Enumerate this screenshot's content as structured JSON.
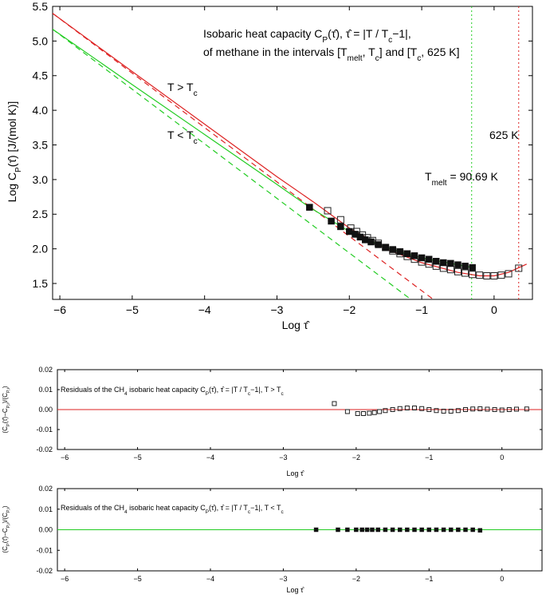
{
  "chart_data": [
    {
      "type": "scatter",
      "xlim": [
        -6.1,
        0.53
      ],
      "ylim": [
        1.27,
        5.5
      ],
      "xticks": [
        {
          "value": -6,
          "label": "−6"
        },
        {
          "value": -5,
          "label": "−5"
        },
        {
          "value": -4,
          "label": "−4"
        },
        {
          "value": -3,
          "label": "−3"
        },
        {
          "value": -2,
          "label": "−2"
        },
        {
          "value": -1,
          "label": "−1"
        },
        0
      ],
      "yticks": [
        1.5,
        {
          "value": 2,
          "label": "2.0"
        },
        2.5,
        {
          "value": 3,
          "label": "3.0"
        },
        3.5,
        {
          "value": 4,
          "label": "4.0"
        },
        4.5,
        {
          "value": 5,
          "label": "5.0"
        },
        5.5
      ],
      "x_label": [
        {
          "t": "Log τ̂"
        }
      ],
      "y_label": [
        {
          "t": "Log C"
        },
        {
          "t": "P",
          "sub": true
        },
        {
          "t": "(τ̂) [J/(mol K)]"
        }
      ],
      "annotations": [
        [
          {
            "t": "Isobaric heat capacity C"
          },
          {
            "t": "P",
            "sub": true
          },
          {
            "t": "(τ̂), τ̂ = |T / T"
          },
          {
            "t": "c",
            "sub": true
          },
          {
            "t": "−1|,"
          }
        ],
        [
          {
            "t": "of methane in the intervals [T"
          },
          {
            "t": "melt",
            "sub": true
          },
          {
            "t": ", T"
          },
          {
            "t": "c",
            "sub": true
          },
          {
            "t": "] and [T"
          },
          {
            "t": "c",
            "sub": true
          },
          {
            "t": ", 625 K]"
          }
        ],
        [
          {
            "t": "T > T"
          },
          {
            "t": "c",
            "sub": true
          }
        ],
        [
          {
            "t": "T < T"
          },
          {
            "t": "c",
            "sub": true
          }
        ],
        [
          {
            "t": "625 K"
          }
        ],
        [
          {
            "t": "T"
          },
          {
            "t": "melt",
            "sub": true
          },
          {
            "t": " = 90.69 K"
          }
        ]
      ],
      "vlines": [
        {
          "x": -0.31,
          "color": "#22cc22",
          "style": "dotted"
        },
        {
          "x": 0.34,
          "color": "#dd2222",
          "style": "dotted"
        }
      ],
      "series": [
        {
          "kind": "line",
          "color": "#dd2222",
          "style": "solid",
          "x": [
            -6.1,
            -5,
            -4,
            -3,
            -2.5,
            -2,
            -1.5,
            -1,
            -0.5,
            -0.2,
            0,
            0.2,
            0.45
          ],
          "y": [
            5.4,
            4.56,
            3.8,
            3.04,
            2.68,
            2.3,
            2.0,
            1.8,
            1.66,
            1.61,
            1.61,
            1.66,
            1.78
          ]
        },
        {
          "kind": "line",
          "color": "#dd2222",
          "style": "dashed",
          "x": [
            -6.1,
            -0.84
          ],
          "y": [
            5.4,
            1.27
          ]
        },
        {
          "kind": "line",
          "color": "#22cc22",
          "style": "solid",
          "x": [
            -6.1,
            -5,
            -4,
            -3,
            -2.55,
            -2,
            -1.5,
            -1,
            -0.5,
            -0.3
          ],
          "y": [
            5.17,
            4.37,
            3.65,
            2.93,
            2.6,
            2.25,
            2.02,
            1.87,
            1.77,
            1.73
          ]
        },
        {
          "kind": "line",
          "color": "#22cc22",
          "style": "dashed",
          "x": [
            -6.1,
            -1.15
          ],
          "y": [
            5.17,
            1.27
          ]
        },
        {
          "kind": "points",
          "color": "#222222",
          "marker": "open-square",
          "x": [
            -2.3,
            -2.12,
            -1.98,
            -1.9,
            -1.82,
            -1.75,
            -1.68,
            -1.6,
            -1.5,
            -1.4,
            -1.3,
            -1.2,
            -1.1,
            -1,
            -0.9,
            -0.8,
            -0.7,
            -0.6,
            -0.5,
            -0.4,
            -0.3,
            -0.2,
            -0.1,
            0,
            0.1,
            0.2,
            0.34
          ],
          "y": [
            2.55,
            2.42,
            2.3,
            2.25,
            2.2,
            2.16,
            2.12,
            2.08,
            2.02,
            1.97,
            1.93,
            1.89,
            1.85,
            1.81,
            1.78,
            1.75,
            1.72,
            1.7,
            1.67,
            1.65,
            1.63,
            1.62,
            1.61,
            1.61,
            1.62,
            1.64,
            1.72
          ]
        },
        {
          "kind": "points",
          "color": "#111111",
          "marker": "filled-square",
          "x": [
            -2.55,
            -2.25,
            -2.12,
            -2,
            -1.92,
            -1.85,
            -1.78,
            -1.7,
            -1.6,
            -1.5,
            -1.4,
            -1.3,
            -1.2,
            -1.1,
            -1,
            -0.9,
            -0.8,
            -0.7,
            -0.6,
            -0.5,
            -0.4,
            -0.3
          ],
          "y": [
            2.6,
            2.4,
            2.32,
            2.25,
            2.21,
            2.17,
            2.13,
            2.1,
            2.06,
            2.02,
            1.99,
            1.96,
            1.93,
            1.9,
            1.87,
            1.85,
            1.82,
            1.8,
            1.79,
            1.77,
            1.75,
            1.73
          ]
        }
      ]
    },
    {
      "type": "scatter",
      "xlim": [
        -6.1,
        0.55
      ],
      "ylim": [
        -0.02,
        0.02
      ],
      "xticks": [
        {
          "value": -6,
          "label": "−6"
        },
        {
          "value": -5,
          "label": "−5"
        },
        {
          "value": -4,
          "label": "−4"
        },
        {
          "value": -3,
          "label": "−3"
        },
        {
          "value": -2,
          "label": "−2"
        },
        {
          "value": -1,
          "label": "−1"
        },
        0
      ],
      "yticks": [
        -0.02,
        -0.01,
        {
          "value": 0,
          "label": "0.00"
        },
        0.01,
        0.02
      ],
      "x_label": [
        {
          "t": "Log τ̂"
        }
      ],
      "y_label": [
        {
          "t": "(C"
        },
        {
          "t": "P",
          "sub": true
        },
        {
          "t": "(τ̂)−C"
        },
        {
          "t": "P,i",
          "sub": true
        },
        {
          "t": ")/(C"
        },
        {
          "t": "P,i",
          "sub": true
        },
        {
          "t": ")"
        }
      ],
      "annotations": [
        [
          {
            "t": "Residuals of the CH"
          },
          {
            "t": "4",
            "sub": true
          },
          {
            "t": " isobaric heat capacity C"
          },
          {
            "t": "P",
            "sub": true
          },
          {
            "t": "(τ̂), τ̂ = |T / T"
          },
          {
            "t": "c",
            "sub": true
          },
          {
            "t": "−1|, T > T"
          },
          {
            "t": "c",
            "sub": true
          }
        ]
      ],
      "hlines": [
        {
          "y": 0,
          "color": "#dd2222"
        }
      ],
      "series": [
        {
          "kind": "points",
          "color": "#222222",
          "marker": "open-square",
          "x": [
            -2.3,
            -2.12,
            -1.98,
            -1.9,
            -1.82,
            -1.75,
            -1.68,
            -1.6,
            -1.5,
            -1.4,
            -1.3,
            -1.2,
            -1.1,
            -1,
            -0.9,
            -0.8,
            -0.7,
            -0.6,
            -0.5,
            -0.4,
            -0.3,
            -0.2,
            -0.1,
            0,
            0.1,
            0.2,
            0.34
          ],
          "y": [
            0.003,
            -0.001,
            -0.002,
            -0.002,
            -0.0018,
            -0.0015,
            -0.001,
            -0.0005,
            0,
            0.0005,
            0.0008,
            0.0008,
            0.0005,
            0,
            -0.0005,
            -0.0008,
            -0.0008,
            -0.0005,
            0,
            0.0003,
            0.0004,
            0.0002,
            0,
            -0.0002,
            0,
            0.0002,
            0.0003
          ]
        }
      ]
    },
    {
      "type": "scatter",
      "xlim": [
        -6.1,
        0.55
      ],
      "ylim": [
        -0.02,
        0.02
      ],
      "xticks": [
        {
          "value": -6,
          "label": "−6"
        },
        {
          "value": -5,
          "label": "−5"
        },
        {
          "value": -4,
          "label": "−4"
        },
        {
          "value": -3,
          "label": "−3"
        },
        {
          "value": -2,
          "label": "−2"
        },
        {
          "value": -1,
          "label": "−1"
        },
        0
      ],
      "yticks": [
        -0.02,
        -0.01,
        {
          "value": 0,
          "label": "0.00"
        },
        0.01,
        0.02
      ],
      "x_label": [
        {
          "t": "Log τ̂"
        }
      ],
      "y_label": [
        {
          "t": "(C"
        },
        {
          "t": "P",
          "sub": true
        },
        {
          "t": "(τ̂)−C"
        },
        {
          "t": "P,i",
          "sub": true
        },
        {
          "t": ")/(C"
        },
        {
          "t": "P,i",
          "sub": true
        },
        {
          "t": ")"
        }
      ],
      "annotations": [
        [
          {
            "t": "Residuals of the CH"
          },
          {
            "t": "4",
            "sub": true
          },
          {
            "t": " isobaric heat capacity C"
          },
          {
            "t": "P",
            "sub": true
          },
          {
            "t": "(τ̂), τ̂ = |T / T"
          },
          {
            "t": "c",
            "sub": true
          },
          {
            "t": "−1|, T < T"
          },
          {
            "t": "c",
            "sub": true
          }
        ]
      ],
      "hlines": [
        {
          "y": 0,
          "color": "#22cc22"
        }
      ],
      "series": [
        {
          "kind": "points",
          "color": "#111111",
          "marker": "filled-square",
          "x": [
            -2.55,
            -2.25,
            -2.12,
            -2,
            -1.92,
            -1.85,
            -1.78,
            -1.7,
            -1.6,
            -1.5,
            -1.4,
            -1.3,
            -1.2,
            -1.1,
            -1,
            -0.9,
            -0.8,
            -0.7,
            -0.6,
            -0.5,
            -0.4,
            -0.3
          ],
          "y": [
            0,
            0,
            0,
            0,
            0,
            0,
            0,
            0,
            0,
            0,
            0,
            0,
            0,
            0,
            0,
            0,
            0,
            0,
            0,
            0,
            0,
            -0.0003
          ]
        }
      ]
    }
  ]
}
